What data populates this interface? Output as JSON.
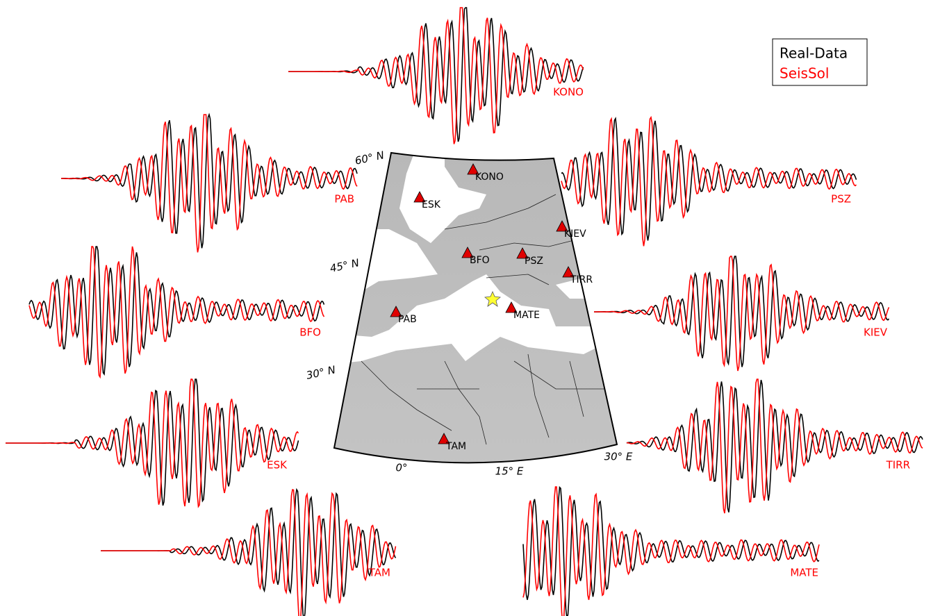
{
  "legend": {
    "items": [
      {
        "label": "Real-Data",
        "color": "#000000"
      },
      {
        "label": "SeisSol",
        "color": "#ff0000"
      }
    ]
  },
  "map": {
    "lat_labels": [
      "60° N",
      "45° N",
      "30° N"
    ],
    "lon_labels": [
      "0°",
      "15° E",
      "30° E"
    ],
    "stations": [
      "KONO",
      "ESK",
      "KIEV",
      "BFO",
      "PSZ",
      "TIRR",
      "PAB",
      "MATE",
      "TAM"
    ]
  },
  "traces": [
    "KONO",
    "PAB",
    "PSZ",
    "BFO",
    "KIEV",
    "ESK",
    "TIRR",
    "TAM",
    "MATE"
  ]
}
